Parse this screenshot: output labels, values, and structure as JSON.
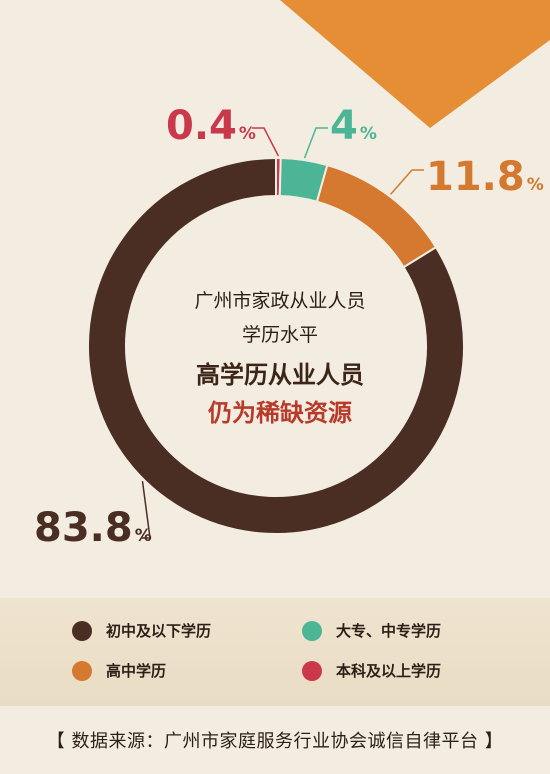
{
  "chart_data": {
    "type": "pie",
    "categories": [
      "初中及以下学历",
      "大专、中专学历",
      "高中学历",
      "本科及以上学历"
    ],
    "values": [
      83.8,
      4,
      11.8,
      0.4
    ],
    "value_labels": [
      "83.8",
      "4",
      "11.8",
      "0.4"
    ],
    "unit": "%",
    "colors": [
      "#4a2d23",
      "#4bb596",
      "#d4792f",
      "#c9384b"
    ],
    "title": "广州市家政从业人员",
    "subtitle": "学历水平",
    "legend_position": "bottom"
  },
  "center": {
    "line1": "广州市家政从业人员",
    "line2": "学历水平",
    "headline1": "高学历从业人员",
    "headline2": "仍为稀缺资源"
  },
  "legend": [
    {
      "label": "初中及以下学历",
      "color": "#4a2d23"
    },
    {
      "label": "大专、中专学历",
      "color": "#4bb596"
    },
    {
      "label": "高中学历",
      "color": "#d4792f"
    },
    {
      "label": "本科及以上学历",
      "color": "#c9384b"
    }
  ],
  "footer": {
    "text": "【 数据来源：广州市家庭服务行业协会诚信自律平台 】"
  },
  "corner_color": "#e58e36"
}
